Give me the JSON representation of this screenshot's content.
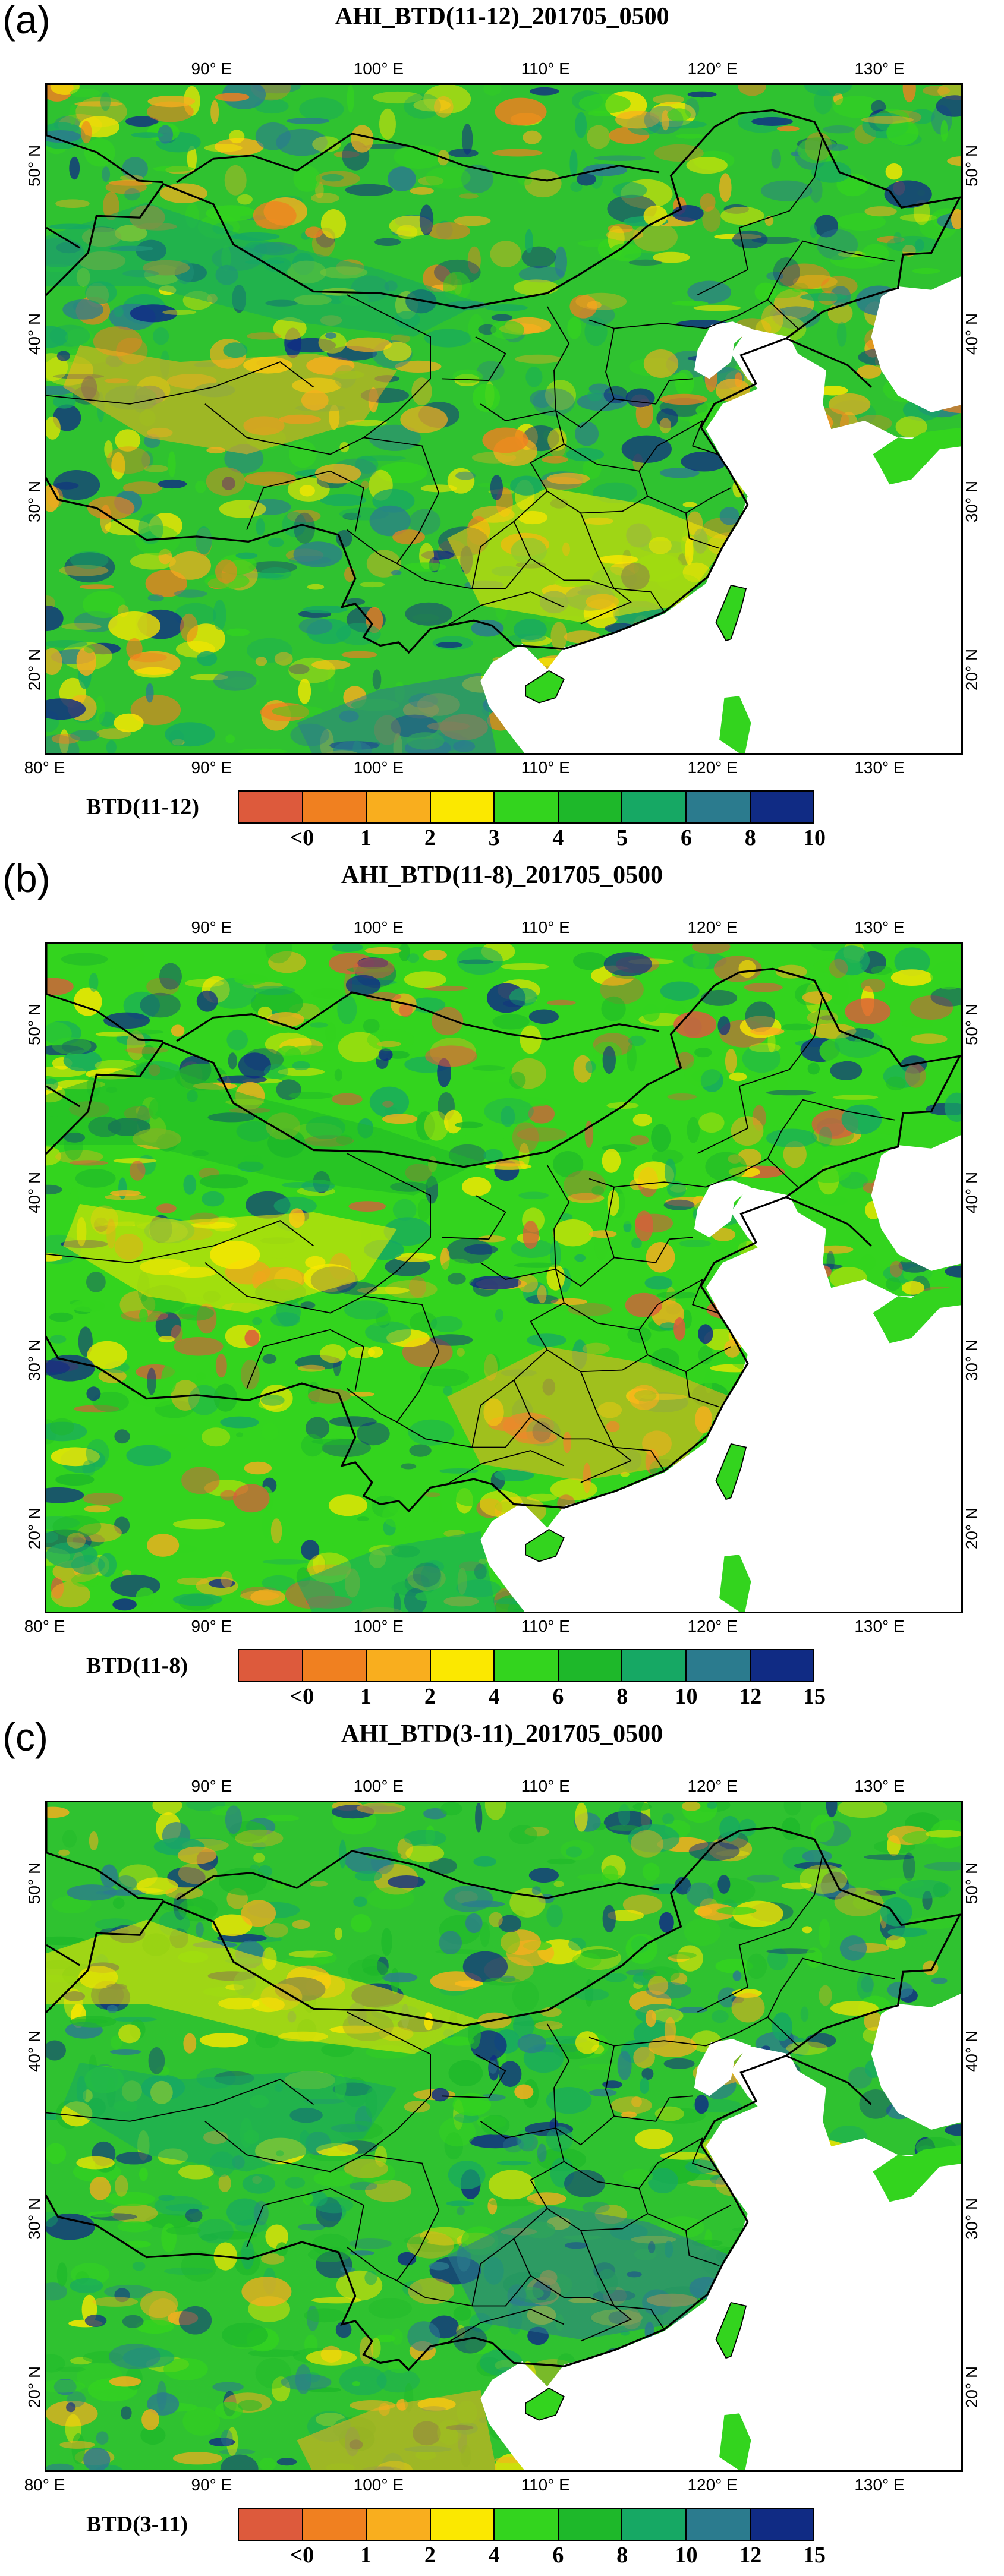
{
  "panels": [
    {
      "tag": "(a)",
      "title": "AHI_BTD(11-12)_201705_0500",
      "colorbar_label": "BTD(11-12)",
      "ticks": [
        "<0",
        "1",
        "2",
        "3",
        "4",
        "5",
        "6",
        "8",
        "10"
      ],
      "colors": [
        "#dd5a3c",
        "#f08020",
        "#f9ae1e",
        "#fbe800",
        "#33d41e",
        "#1eb82a",
        "#16a864",
        "#2b7b8e",
        "#102b84"
      ],
      "bg": "#2fc230",
      "blotch_palette": [
        "#f9ae1e",
        "#fbe800",
        "#33d41e",
        "#16a864",
        "#2b7b8e",
        "#102b84",
        "#f08020"
      ]
    },
    {
      "tag": "(b)",
      "title": "AHI_BTD(11-8)_201705_0500",
      "colorbar_label": "BTD(11-8)",
      "ticks": [
        "<0",
        "1",
        "2",
        "4",
        "6",
        "8",
        "10",
        "12",
        "15"
      ],
      "colors": [
        "#dd5a3c",
        "#f08020",
        "#f9ae1e",
        "#fbe800",
        "#33d41e",
        "#1eb82a",
        "#16a864",
        "#2b7b8e",
        "#102b84"
      ],
      "bg": "#33d41e",
      "blotch_palette": [
        "#fbe800",
        "#f9ae1e",
        "#33d41e",
        "#1eb82a",
        "#16a864",
        "#102b84",
        "#dd5a3c"
      ]
    },
    {
      "tag": "(c)",
      "title": "AHI_BTD(3-11)_201705_0500",
      "colorbar_label": "BTD(3-11)",
      "ticks": [
        "<0",
        "1",
        "2",
        "4",
        "6",
        "8",
        "10",
        "12",
        "15"
      ],
      "colors": [
        "#dd5a3c",
        "#f08020",
        "#f9ae1e",
        "#fbe800",
        "#33d41e",
        "#1eb82a",
        "#16a864",
        "#2b7b8e",
        "#102b84"
      ],
      "bg": "#2fc230",
      "blotch_palette": [
        "#16a864",
        "#2b7b8e",
        "#33d41e",
        "#fbe800",
        "#f9ae1e",
        "#102b84",
        "#1eb82a"
      ]
    }
  ],
  "lon_labels": [
    "90° E",
    "100° E",
    "110° E",
    "120° E",
    "130° E"
  ],
  "lon_labels_bottom": [
    "80° E",
    "90° E",
    "100° E",
    "110° E",
    "120° E",
    "130° E"
  ],
  "lat_labels": [
    "50° N",
    "40° N",
    "30° N",
    "20° N"
  ]
}
